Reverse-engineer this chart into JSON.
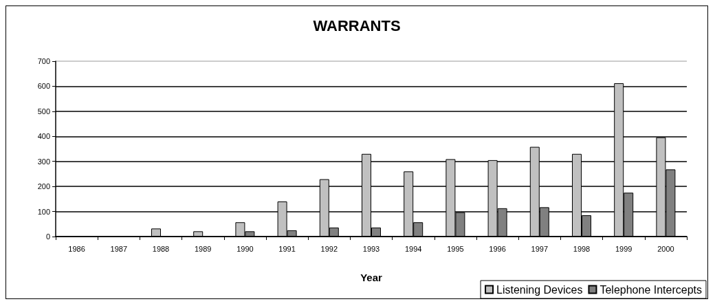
{
  "chart_data": {
    "type": "bar",
    "title": "WARRANTS",
    "xlabel": "Year",
    "categories": [
      "1986",
      "1987",
      "1988",
      "1989",
      "1990",
      "1991",
      "1992",
      "1993",
      "1994",
      "1995",
      "1996",
      "1997",
      "1998",
      "1999",
      "2000"
    ],
    "series": [
      {
        "name": "Listening Devices",
        "color": "#c0c0c0",
        "values": [
          0,
          0,
          32,
          21,
          57,
          140,
          229,
          330,
          260,
          309,
          305,
          358,
          330,
          612,
          396
        ]
      },
      {
        "name": "Telephone Intercepts",
        "color": "#808080",
        "values": [
          0,
          0,
          0,
          0,
          21,
          25,
          36,
          36,
          57,
          97,
          113,
          117,
          85,
          175,
          268
        ]
      }
    ],
    "ylim": [
      0,
      700
    ],
    "yticks": [
      0,
      100,
      200,
      300,
      400,
      500,
      600,
      700
    ],
    "grid": "y",
    "legend": "bottom right"
  }
}
